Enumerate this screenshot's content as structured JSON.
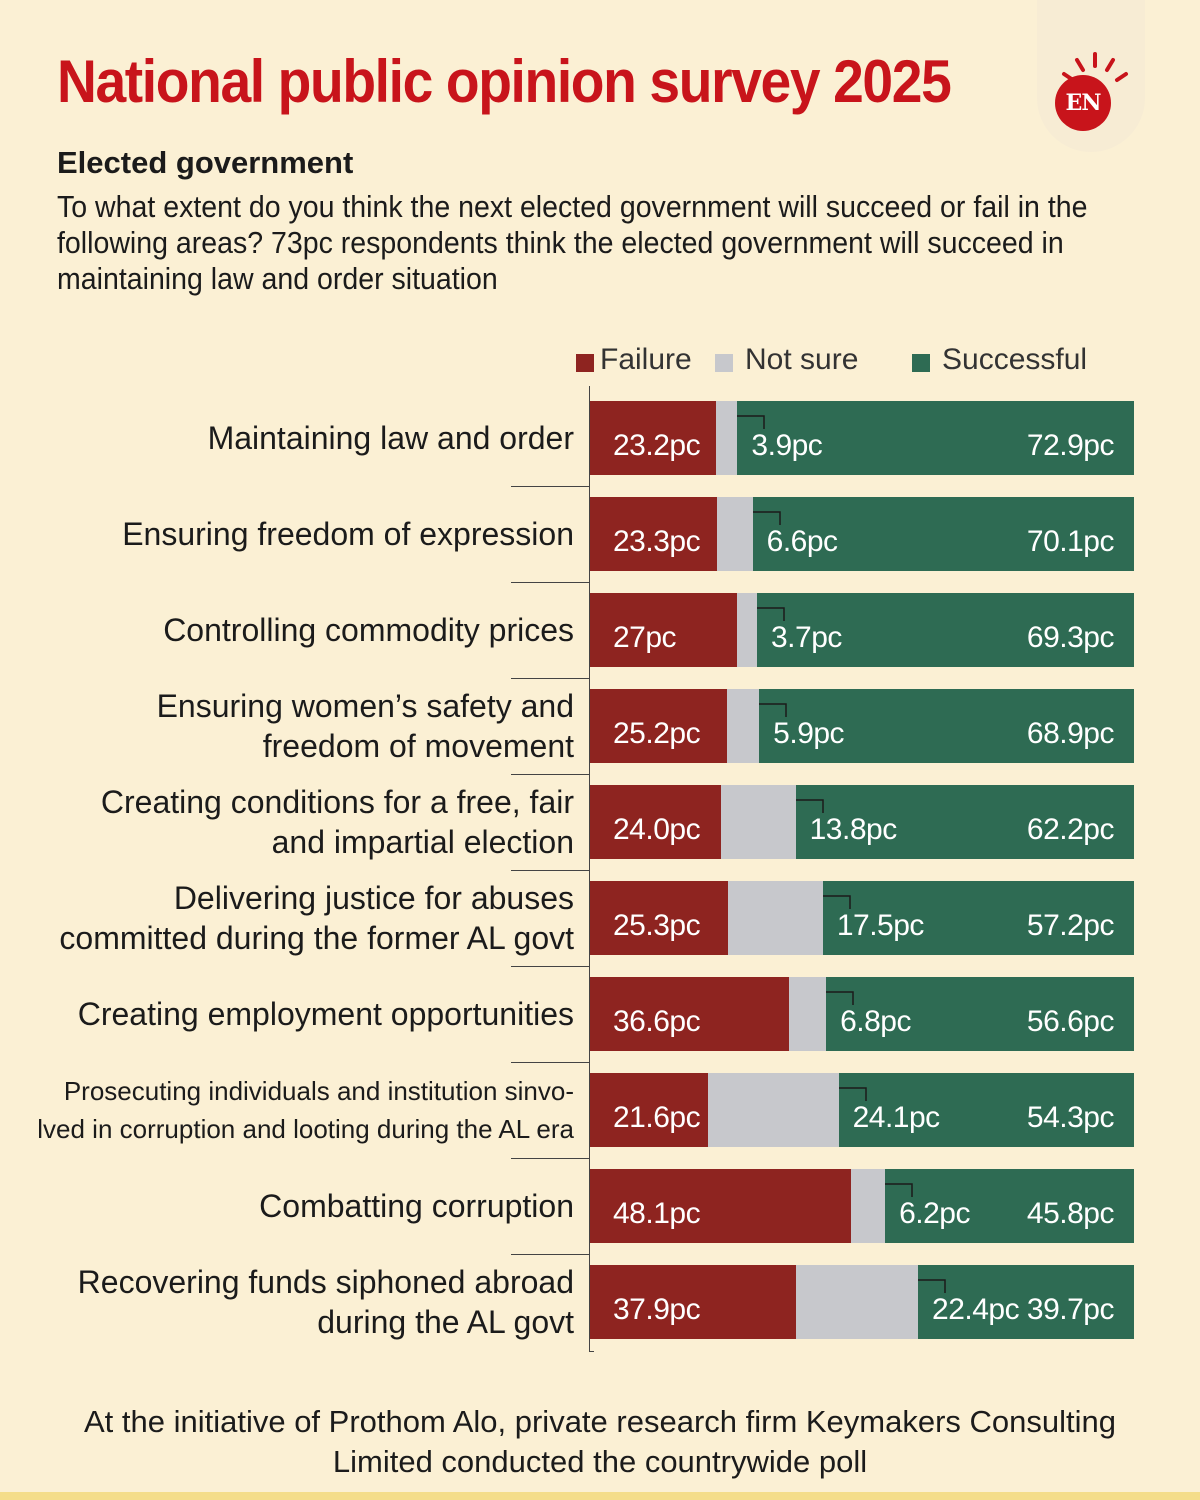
{
  "header": {
    "title": "National public opinion survey 2025",
    "logo_text": "EN",
    "subtitle": "Elected government",
    "question": "To what extent do you think the next elected government will succeed or fail in the following areas? 73pc respondents think the elected government will succeed in maintaining law and order situation"
  },
  "colors": {
    "failure": "#8e2420",
    "not_sure": "#c7c8cc",
    "successful": "#2e6b53",
    "title": "#c8141b",
    "background": "#fbf0d4"
  },
  "legend": {
    "failure": "Failure",
    "not_sure": "Not sure",
    "successful": "Successful"
  },
  "chart_data": {
    "type": "bar",
    "orientation": "horizontal",
    "stacked": true,
    "unit": "pc",
    "categories": [
      "Maintaining law and order",
      "Ensuring freedom of expression",
      "Controlling commodity prices",
      "Ensuring women’s safety and freedom of movement",
      "Creating conditions for a free, fair and impartial election",
      "Delivering justice for abuses committed during the former AL govt",
      "Creating employment opportunities",
      "Prosecuting individuals and institution sinvolved in corruption and looting during the AL era",
      "Combatting corruption",
      "Recovering funds siphoned abroad during the AL govt"
    ],
    "label_lines": [
      [
        "Maintaining law and order"
      ],
      [
        "Ensuring freedom of expression"
      ],
      [
        "Controlling commodity prices"
      ],
      [
        "Ensuring women’s safety and",
        "freedom of movement"
      ],
      [
        "Creating conditions for a free, fair",
        "and impartial election"
      ],
      [
        "Delivering justice for abuses",
        "committed during the former AL govt"
      ],
      [
        "Creating employment opportunities"
      ],
      [
        "Prosecuting individuals and institution sinvo-",
        "lved in corruption and looting during the AL era"
      ],
      [
        "Combatting corruption"
      ],
      [
        "Recovering funds siphoned abroad",
        "during the AL govt"
      ]
    ],
    "series": [
      {
        "name": "Failure",
        "key": "failure",
        "values": [
          23.2,
          23.3,
          27,
          25.2,
          24.0,
          25.3,
          36.6,
          21.6,
          48.1,
          37.9
        ],
        "labels": [
          "23.2pc",
          "23.3pc",
          "27pc",
          "25.2pc",
          "24.0pc",
          "25.3pc",
          "36.6pc",
          "21.6pc",
          "48.1pc",
          "37.9pc"
        ]
      },
      {
        "name": "Not sure",
        "key": "not_sure",
        "values": [
          3.9,
          6.6,
          3.7,
          5.9,
          13.8,
          17.5,
          6.8,
          24.1,
          6.2,
          22.4
        ],
        "labels": [
          "3.9pc",
          "6.6pc",
          "3.7pc",
          "5.9pc",
          "13.8pc",
          "17.5pc",
          "6.8pc",
          "24.1pc",
          "6.2pc",
          "22.4pc"
        ]
      },
      {
        "name": "Successful",
        "key": "successful",
        "values": [
          72.9,
          70.1,
          69.3,
          68.9,
          62.2,
          57.2,
          56.6,
          54.3,
          45.8,
          39.7
        ],
        "labels": [
          "72.9pc",
          "70.1pc",
          "69.3pc",
          "68.9pc",
          "62.2pc",
          "57.2pc",
          "56.6pc",
          "54.3pc",
          "45.8pc",
          "39.7pc"
        ]
      }
    ],
    "xlim": [
      0,
      100
    ],
    "legend_position": "top-right"
  },
  "footer": {
    "line1": "At the initiative of Prothom Alo, private research firm Keymakers Consulting",
    "line2": "Limited conducted the countrywide poll"
  }
}
